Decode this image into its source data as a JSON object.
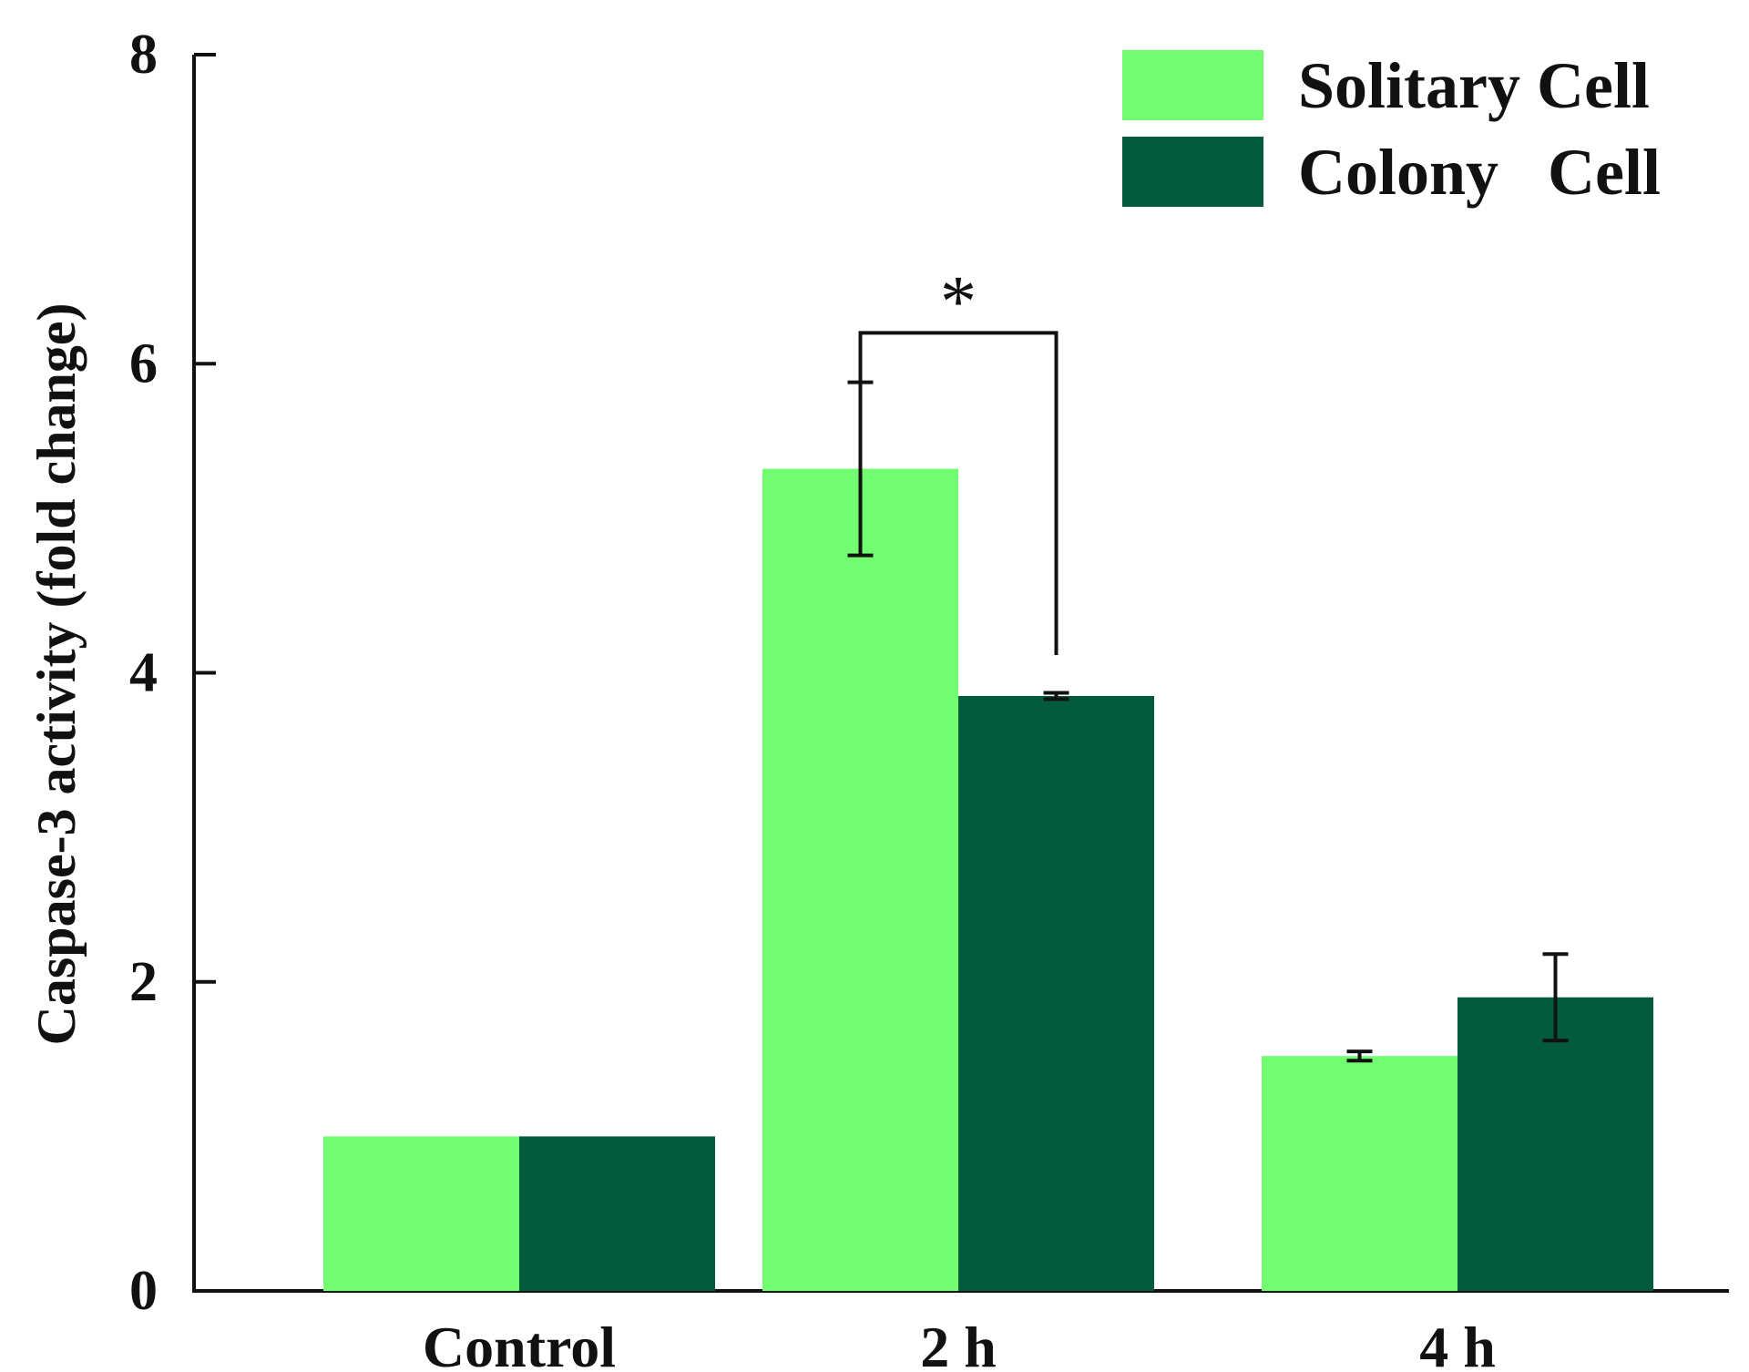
{
  "chart_data": {
    "type": "bar",
    "title": "",
    "xlabel": "",
    "ylabel": "Caspase-3 activity (fold change)",
    "ylim": [
      0,
      8
    ],
    "yticks": [
      0,
      2,
      4,
      6,
      8
    ],
    "categories": [
      "Control",
      "2 h",
      "4 h"
    ],
    "series": [
      {
        "name": "Solitary Cell",
        "color": "#72fc72",
        "values": [
          1.0,
          5.32,
          1.52
        ],
        "errors": [
          null,
          0.56,
          0.03
        ]
      },
      {
        "name": "Colony   Cell",
        "color": "#025b3c",
        "values": [
          1.0,
          3.85,
          1.9
        ],
        "errors": [
          null,
          0.02,
          0.28
        ]
      }
    ],
    "legend": {
      "position": "top-right"
    },
    "annotations": [
      {
        "text": "*",
        "category": "2 h",
        "between": [
          "Solitary Cell",
          "Colony   Cell"
        ],
        "bracket_level": 6.2
      }
    ]
  }
}
